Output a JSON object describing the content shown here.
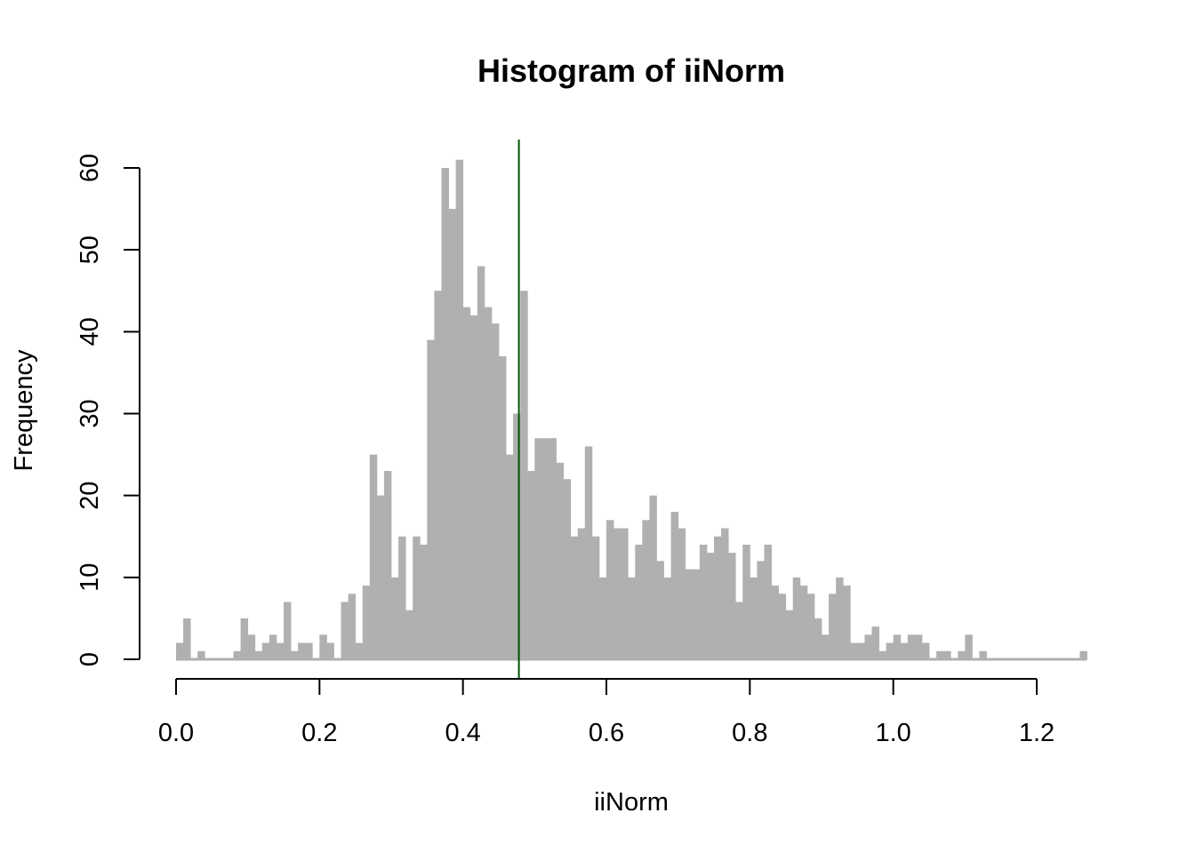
{
  "chart_data": {
    "type": "bar",
    "title": "Histogram of iiNorm",
    "xlabel": "iiNorm",
    "ylabel": "Frequency",
    "bin_width": 0.01,
    "bin_start": 0.0,
    "xlim": [
      0.0,
      1.27
    ],
    "ylim": [
      0,
      63
    ],
    "x_ticks": [
      "0.0",
      "0.2",
      "0.4",
      "0.6",
      "0.8",
      "1.0",
      "1.2"
    ],
    "x_tick_values": [
      0.0,
      0.2,
      0.4,
      0.6,
      0.8,
      1.0,
      1.2
    ],
    "y_ticks": [
      "0",
      "10",
      "20",
      "30",
      "40",
      "50",
      "60"
    ],
    "y_tick_values": [
      0,
      10,
      20,
      30,
      40,
      50,
      60
    ],
    "values": [
      2,
      5,
      0,
      1,
      0,
      0,
      0,
      0,
      1,
      5,
      3,
      1,
      2,
      3,
      2,
      7,
      1,
      2,
      2,
      0,
      3,
      2,
      0,
      7,
      8,
      2,
      9,
      25,
      20,
      23,
      10,
      15,
      6,
      15,
      14,
      39,
      45,
      60,
      55,
      61,
      43,
      42,
      48,
      43,
      41,
      37,
      25,
      30,
      45,
      23,
      27,
      27,
      27,
      24,
      22,
      15,
      16,
      26,
      15,
      10,
      17,
      16,
      16,
      10,
      14,
      17,
      20,
      12,
      10,
      18,
      16,
      11,
      11,
      14,
      13,
      15,
      16,
      13,
      7,
      14,
      10,
      12,
      14,
      9,
      8,
      6,
      10,
      9,
      8,
      5,
      3,
      8,
      10,
      9,
      2,
      2,
      3,
      4,
      1,
      2,
      3,
      2,
      3,
      3,
      2,
      0,
      1,
      1,
      0,
      1,
      3,
      0,
      1,
      0,
      0,
      0,
      0,
      0,
      0,
      0,
      0,
      0,
      0,
      0,
      0,
      0,
      1
    ],
    "bar_color": "#b0b0b0",
    "vline": {
      "x": 0.478,
      "color": "#005500"
    },
    "grid": false
  }
}
